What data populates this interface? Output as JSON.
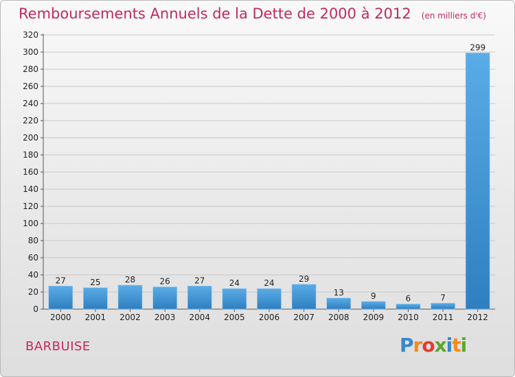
{
  "title": "Remboursements Annuels de la Dette de 2000 à 2012",
  "unit": "(en milliers d'€)",
  "commune": "BARBUISE",
  "brand": {
    "letters": [
      "P",
      "r",
      "o",
      "x",
      "i",
      "t",
      "i"
    ],
    "colors": [
      "#3a87c8",
      "#f28c1c",
      "#e23d2f",
      "#5aa82f",
      "#3a87c8",
      "#f28c1c",
      "#5aa82f"
    ]
  },
  "colors": {
    "bar_light": "#5aace6",
    "bar_dark": "#2f7fc0",
    "title": "#c2295c"
  },
  "chart_data": {
    "type": "bar",
    "title": "Remboursements Annuels de la Dette de 2000 à 2012",
    "ylabel": "",
    "xlabel": "",
    "categories": [
      "2000",
      "2001",
      "2002",
      "2003",
      "2004",
      "2005",
      "2006",
      "2007",
      "2008",
      "2009",
      "2010",
      "2011",
      "2012"
    ],
    "values": [
      27,
      25,
      28,
      26,
      27,
      24,
      24,
      29,
      13,
      9,
      6,
      7,
      299
    ],
    "ylim": [
      0,
      320
    ],
    "yticks": [
      0,
      20,
      40,
      60,
      80,
      100,
      120,
      140,
      160,
      180,
      200,
      220,
      240,
      260,
      280,
      300,
      320
    ],
    "grid": true
  }
}
